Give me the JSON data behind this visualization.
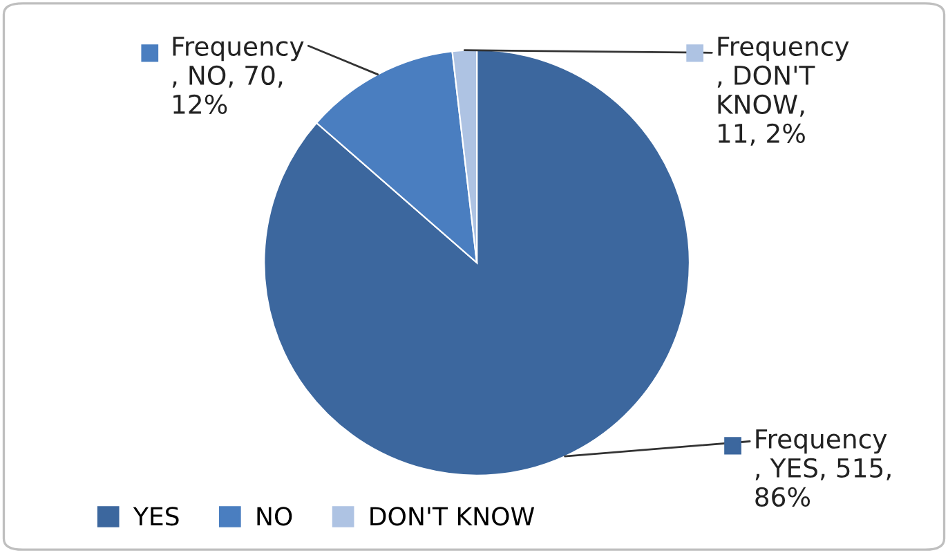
{
  "chart_data": {
    "type": "pie",
    "categories": [
      "YES",
      "NO",
      "DON'T KNOW"
    ],
    "values": [
      515,
      70,
      11
    ],
    "colors": [
      "#3c679e",
      "#4a7ec0",
      "#aec3e3"
    ],
    "value_labels": [
      "Frequency\n, YES, 515,\n86%",
      "Frequency\n, NO, 70,\n12%",
      "Frequency\n, DON'T\nKNOW,\n11, 2%"
    ],
    "legend": "bottom"
  }
}
